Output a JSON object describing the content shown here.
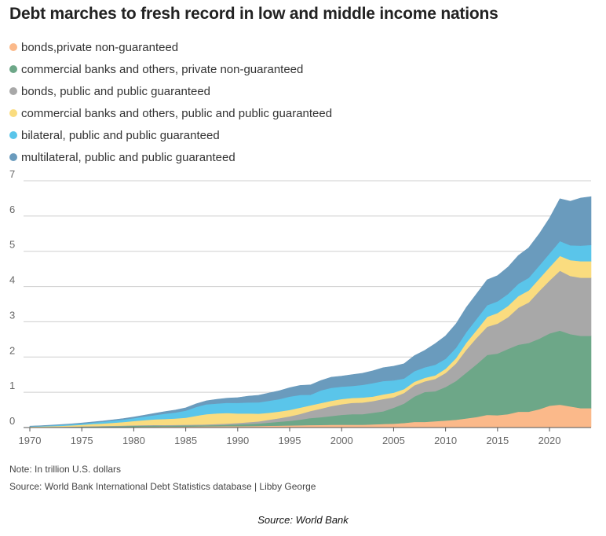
{
  "title": "Debt marches to fresh record in low and middle income nations",
  "note": "Note: In trillion U.S. dollars",
  "source_line": "Source: World Bank International Debt Statistics database | Libby George",
  "credit": "Source: World Bank",
  "chart_data": {
    "type": "area",
    "stacked": true,
    "x": [
      1970,
      1971,
      1972,
      1973,
      1974,
      1975,
      1976,
      1977,
      1978,
      1979,
      1980,
      1981,
      1982,
      1983,
      1984,
      1985,
      1986,
      1987,
      1988,
      1989,
      1990,
      1991,
      1992,
      1993,
      1994,
      1995,
      1996,
      1997,
      1998,
      1999,
      2000,
      2001,
      2002,
      2003,
      2004,
      2005,
      2006,
      2007,
      2008,
      2009,
      2010,
      2011,
      2012,
      2013,
      2014,
      2015,
      2016,
      2017,
      2018,
      2019,
      2020,
      2021,
      2022,
      2023,
      2024
    ],
    "xticks": [
      "1970",
      "1975",
      "1980",
      "1985",
      "1990",
      "1995",
      "2000",
      "2005",
      "2010",
      "2015",
      "2020"
    ],
    "yticks": [
      "0",
      "1",
      "2",
      "3",
      "4",
      "5",
      "6",
      "7"
    ],
    "ylim": [
      0,
      7
    ],
    "xlim": [
      1970,
      2024
    ],
    "grid": true,
    "legend_position": "top-left",
    "series": [
      {
        "name": "bonds,private non-guaranteed",
        "color": "#fbb98a",
        "values": [
          0.005,
          0.005,
          0.006,
          0.007,
          0.008,
          0.01,
          0.012,
          0.014,
          0.016,
          0.018,
          0.02,
          0.022,
          0.024,
          0.025,
          0.027,
          0.03,
          0.032,
          0.035,
          0.037,
          0.039,
          0.04,
          0.042,
          0.045,
          0.05,
          0.055,
          0.06,
          0.065,
          0.07,
          0.075,
          0.078,
          0.08,
          0.08,
          0.08,
          0.09,
          0.1,
          0.11,
          0.13,
          0.16,
          0.16,
          0.18,
          0.2,
          0.22,
          0.26,
          0.3,
          0.36,
          0.35,
          0.38,
          0.45,
          0.45,
          0.52,
          0.62,
          0.65,
          0.6,
          0.55,
          0.55
        ]
      },
      {
        "name": "commercial banks and others, private non-guaranteed",
        "color": "#6da788",
        "values": [
          0.005,
          0.006,
          0.008,
          0.01,
          0.012,
          0.015,
          0.018,
          0.02,
          0.022,
          0.025,
          0.03,
          0.032,
          0.032,
          0.03,
          0.03,
          0.03,
          0.03,
          0.03,
          0.035,
          0.04,
          0.05,
          0.06,
          0.07,
          0.09,
          0.11,
          0.13,
          0.16,
          0.2,
          0.22,
          0.25,
          0.28,
          0.3,
          0.3,
          0.33,
          0.36,
          0.45,
          0.55,
          0.72,
          0.85,
          0.85,
          0.95,
          1.1,
          1.3,
          1.5,
          1.7,
          1.75,
          1.85,
          1.9,
          1.95,
          2.0,
          2.05,
          2.1,
          2.05,
          2.05,
          2.05
        ]
      },
      {
        "name": "bonds, public and public guaranteed",
        "color": "#a8a8a8",
        "values": [
          0.005,
          0.005,
          0.006,
          0.007,
          0.008,
          0.009,
          0.01,
          0.011,
          0.012,
          0.013,
          0.015,
          0.016,
          0.017,
          0.018,
          0.02,
          0.02,
          0.022,
          0.025,
          0.03,
          0.035,
          0.04,
          0.05,
          0.06,
          0.08,
          0.1,
          0.13,
          0.16,
          0.2,
          0.24,
          0.28,
          0.3,
          0.32,
          0.33,
          0.33,
          0.35,
          0.3,
          0.3,
          0.32,
          0.3,
          0.35,
          0.4,
          0.5,
          0.65,
          0.75,
          0.8,
          0.85,
          0.9,
          1.05,
          1.15,
          1.35,
          1.5,
          1.7,
          1.65,
          1.65,
          1.65
        ]
      },
      {
        "name": "commercial banks and others, public and public guaranteed",
        "color": "#fadc7f",
        "values": [
          0.01,
          0.015,
          0.02,
          0.025,
          0.035,
          0.045,
          0.06,
          0.07,
          0.085,
          0.1,
          0.12,
          0.14,
          0.16,
          0.17,
          0.18,
          0.2,
          0.25,
          0.29,
          0.3,
          0.3,
          0.27,
          0.25,
          0.22,
          0.2,
          0.19,
          0.18,
          0.18,
          0.16,
          0.16,
          0.15,
          0.15,
          0.14,
          0.14,
          0.13,
          0.13,
          0.13,
          0.11,
          0.1,
          0.1,
          0.1,
          0.12,
          0.15,
          0.2,
          0.22,
          0.28,
          0.3,
          0.32,
          0.33,
          0.34,
          0.35,
          0.38,
          0.42,
          0.45,
          0.47,
          0.47
        ]
      },
      {
        "name": "bilateral, public and public guaranteed",
        "color": "#5ac5ea",
        "values": [
          0.01,
          0.015,
          0.02,
          0.025,
          0.03,
          0.035,
          0.04,
          0.05,
          0.06,
          0.07,
          0.08,
          0.1,
          0.12,
          0.15,
          0.17,
          0.2,
          0.25,
          0.28,
          0.28,
          0.29,
          0.3,
          0.31,
          0.32,
          0.34,
          0.35,
          0.38,
          0.36,
          0.3,
          0.36,
          0.37,
          0.35,
          0.34,
          0.36,
          0.38,
          0.38,
          0.35,
          0.3,
          0.3,
          0.3,
          0.3,
          0.28,
          0.29,
          0.3,
          0.32,
          0.33,
          0.33,
          0.34,
          0.35,
          0.36,
          0.37,
          0.39,
          0.42,
          0.42,
          0.44,
          0.46
        ]
      },
      {
        "name": "multilateral, public and public guaranteed",
        "color": "#6a9bbd",
        "values": [
          0.005,
          0.006,
          0.008,
          0.01,
          0.012,
          0.015,
          0.018,
          0.02,
          0.025,
          0.03,
          0.035,
          0.04,
          0.05,
          0.06,
          0.07,
          0.08,
          0.09,
          0.1,
          0.12,
          0.13,
          0.15,
          0.18,
          0.2,
          0.22,
          0.24,
          0.25,
          0.27,
          0.28,
          0.28,
          0.3,
          0.3,
          0.32,
          0.33,
          0.35,
          0.38,
          0.4,
          0.42,
          0.44,
          0.48,
          0.6,
          0.65,
          0.68,
          0.7,
          0.71,
          0.72,
          0.73,
          0.76,
          0.8,
          0.85,
          0.9,
          1.0,
          1.2,
          1.25,
          1.35,
          1.37
        ]
      }
    ]
  }
}
